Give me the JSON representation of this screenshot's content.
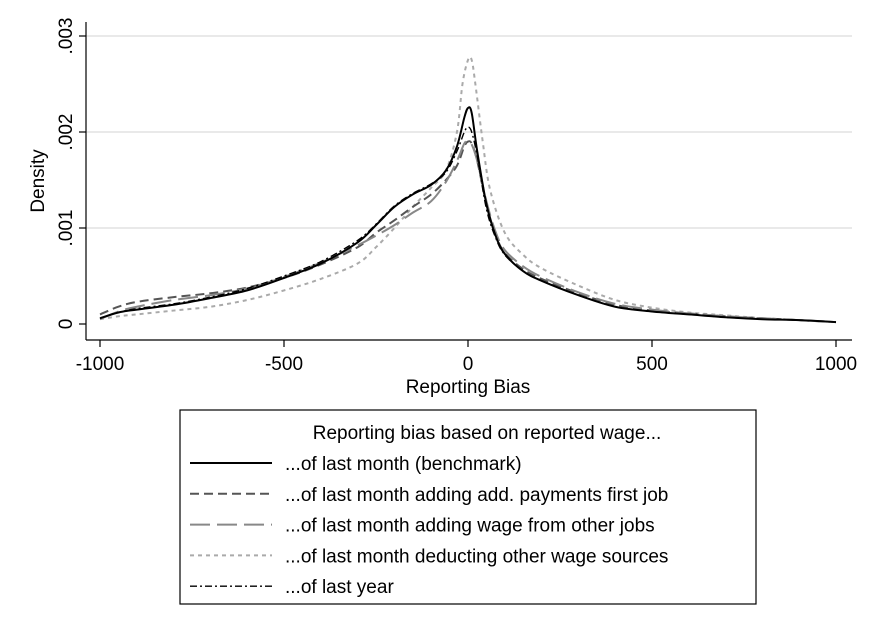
{
  "chart_data": {
    "type": "line",
    "xlabel": "Reporting Bias",
    "ylabel": "Density",
    "xlim": [
      -1000,
      1000
    ],
    "ylim": [
      0,
      0.003
    ],
    "xticks": [
      -1000,
      -500,
      0,
      500,
      1000
    ],
    "xtick_labels": [
      "-1000",
      "-500",
      "0",
      "500",
      "1000"
    ],
    "yticks": [
      0,
      0.001,
      0.002,
      0.003
    ],
    "ytick_labels": [
      "0",
      ".001",
      ".002",
      ".003"
    ],
    "grid": "horizontal",
    "legend": {
      "title": "Reporting bias based on reported wage...",
      "placement": "below"
    },
    "series": [
      {
        "name": "...of last month (benchmark)",
        "color": "#000000",
        "dash": "solid",
        "points": [
          [
            -1000,
            6e-05
          ],
          [
            -950,
            0.00012
          ],
          [
            -900,
            0.00015
          ],
          [
            -800,
            0.0002
          ],
          [
            -700,
            0.00027
          ],
          [
            -600,
            0.00035
          ],
          [
            -500,
            0.00048
          ],
          [
            -400,
            0.00063
          ],
          [
            -300,
            0.00085
          ],
          [
            -250,
            0.00103
          ],
          [
            -200,
            0.00122
          ],
          [
            -150,
            0.00135
          ],
          [
            -100,
            0.00145
          ],
          [
            -60,
            0.0016
          ],
          [
            -30,
            0.00185
          ],
          [
            -10,
            0.00215
          ],
          [
            0,
            0.00225
          ],
          [
            10,
            0.0022
          ],
          [
            25,
            0.0018
          ],
          [
            50,
            0.00125
          ],
          [
            75,
            0.00092
          ],
          [
            100,
            0.00073
          ],
          [
            150,
            0.00055
          ],
          [
            200,
            0.00045
          ],
          [
            300,
            0.0003
          ],
          [
            400,
            0.00018
          ],
          [
            500,
            0.00013
          ],
          [
            600,
            0.0001
          ],
          [
            700,
            7e-05
          ],
          [
            800,
            5e-05
          ],
          [
            900,
            4e-05
          ],
          [
            1000,
            2e-05
          ]
        ]
      },
      {
        "name": "...of last month adding add. payments first job",
        "color": "#555555",
        "dash": "dash",
        "points": [
          [
            -1000,
            0.0001
          ],
          [
            -950,
            0.00018
          ],
          [
            -900,
            0.00023
          ],
          [
            -800,
            0.00028
          ],
          [
            -700,
            0.00032
          ],
          [
            -600,
            0.00038
          ],
          [
            -500,
            0.00048
          ],
          [
            -400,
            0.00062
          ],
          [
            -300,
            0.0008
          ],
          [
            -250,
            0.00095
          ],
          [
            -200,
            0.00108
          ],
          [
            -150,
            0.00122
          ],
          [
            -100,
            0.00135
          ],
          [
            -60,
            0.0015
          ],
          [
            -30,
            0.00165
          ],
          [
            -10,
            0.00185
          ],
          [
            0,
            0.0019
          ],
          [
            10,
            0.00188
          ],
          [
            25,
            0.0017
          ],
          [
            50,
            0.00125
          ],
          [
            75,
            0.00093
          ],
          [
            100,
            0.00074
          ],
          [
            150,
            0.00057
          ],
          [
            200,
            0.00047
          ],
          [
            300,
            0.00032
          ],
          [
            400,
            0.0002
          ],
          [
            500,
            0.00014
          ],
          [
            600,
            0.00011
          ],
          [
            700,
            8e-05
          ],
          [
            800,
            6e-05
          ],
          [
            900,
            4e-05
          ],
          [
            1000,
            2e-05
          ]
        ]
      },
      {
        "name": "...of last month adding wage from other jobs",
        "color": "#888888",
        "dash": "longdash",
        "points": [
          [
            -1000,
            5e-05
          ],
          [
            -950,
            0.00013
          ],
          [
            -900,
            0.00018
          ],
          [
            -800,
            0.00025
          ],
          [
            -700,
            0.0003
          ],
          [
            -600,
            0.00037
          ],
          [
            -500,
            0.00049
          ],
          [
            -400,
            0.00064
          ],
          [
            -300,
            0.00082
          ],
          [
            -250,
            0.00092
          ],
          [
            -200,
            0.00103
          ],
          [
            -150,
            0.00116
          ],
          [
            -100,
            0.00128
          ],
          [
            -60,
            0.00148
          ],
          [
            -30,
            0.0017
          ],
          [
            -10,
            0.00188
          ],
          [
            0,
            0.0019
          ],
          [
            10,
            0.00187
          ],
          [
            25,
            0.0017
          ],
          [
            50,
            0.00128
          ],
          [
            75,
            0.00096
          ],
          [
            100,
            0.00077
          ],
          [
            150,
            0.0006
          ],
          [
            200,
            0.00049
          ],
          [
            300,
            0.00033
          ],
          [
            400,
            0.00021
          ],
          [
            500,
            0.00015
          ],
          [
            600,
            0.00011
          ],
          [
            700,
            8e-05
          ],
          [
            800,
            6e-05
          ],
          [
            900,
            4e-05
          ],
          [
            1000,
            2e-05
          ]
        ]
      },
      {
        "name": "...of last month deducting other wage sources",
        "color": "#aaaaaa",
        "dash": "shortdash",
        "points": [
          [
            -1000,
            5e-05
          ],
          [
            -950,
            8e-05
          ],
          [
            -900,
            0.0001
          ],
          [
            -800,
            0.00014
          ],
          [
            -700,
            0.00018
          ],
          [
            -600,
            0.00025
          ],
          [
            -500,
            0.00035
          ],
          [
            -400,
            0.00047
          ],
          [
            -300,
            0.00063
          ],
          [
            -250,
            0.0008
          ],
          [
            -200,
            0.001
          ],
          [
            -150,
            0.00122
          ],
          [
            -100,
            0.00142
          ],
          [
            -60,
            0.0016
          ],
          [
            -30,
            0.002
          ],
          [
            -15,
            0.0025
          ],
          [
            0,
            0.00275
          ],
          [
            10,
            0.00275
          ],
          [
            20,
            0.0025
          ],
          [
            40,
            0.0019
          ],
          [
            60,
            0.0014
          ],
          [
            100,
            0.00095
          ],
          [
            150,
            0.00072
          ],
          [
            200,
            0.00058
          ],
          [
            300,
            0.0004
          ],
          [
            400,
            0.00025
          ],
          [
            500,
            0.00017
          ],
          [
            600,
            0.00012
          ],
          [
            700,
            9e-05
          ],
          [
            800,
            6e-05
          ],
          [
            900,
            4e-05
          ],
          [
            1000,
            2e-05
          ]
        ]
      },
      {
        "name": "...of last year",
        "color": "#000000",
        "dash": "dashdot",
        "points": [
          [
            -1000,
            6e-05
          ],
          [
            -950,
            0.00012
          ],
          [
            -900,
            0.00016
          ],
          [
            -800,
            0.00021
          ],
          [
            -700,
            0.00028
          ],
          [
            -600,
            0.00037
          ],
          [
            -500,
            0.0005
          ],
          [
            -400,
            0.00065
          ],
          [
            -300,
            0.00087
          ],
          [
            -250,
            0.00104
          ],
          [
            -200,
            0.00123
          ],
          [
            -150,
            0.00136
          ],
          [
            -100,
            0.00146
          ],
          [
            -60,
            0.00158
          ],
          [
            -30,
            0.0018
          ],
          [
            -10,
            0.002
          ],
          [
            0,
            0.00205
          ],
          [
            10,
            0.002
          ],
          [
            25,
            0.00175
          ],
          [
            50,
            0.0012
          ],
          [
            75,
            0.0009
          ],
          [
            100,
            0.00072
          ],
          [
            150,
            0.00055
          ],
          [
            200,
            0.00045
          ],
          [
            300,
            0.0003
          ],
          [
            400,
            0.00018
          ],
          [
            500,
            0.00013
          ],
          [
            600,
            0.0001
          ],
          [
            700,
            7e-05
          ],
          [
            800,
            5e-05
          ],
          [
            900,
            4e-05
          ],
          [
            1000,
            2e-05
          ]
        ]
      }
    ]
  }
}
